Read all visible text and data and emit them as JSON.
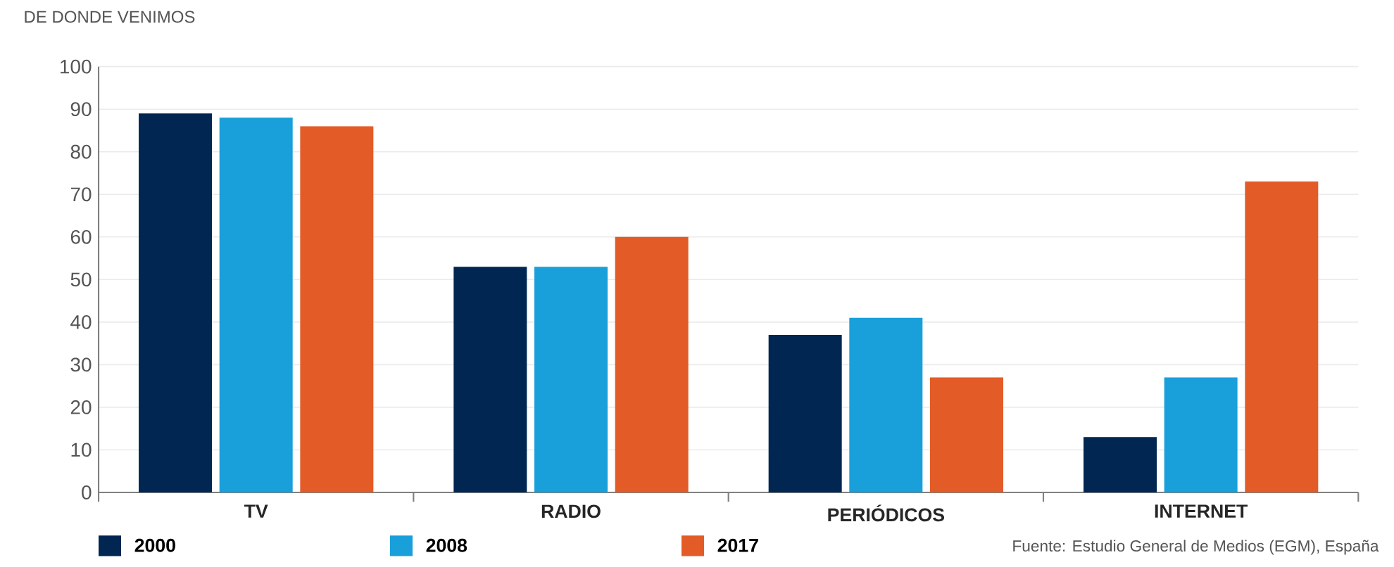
{
  "chart_data": {
    "type": "bar",
    "title": "DE DONDE VENIMOS",
    "categories": [
      "TV",
      "RADIO",
      "PERIÓDICOS",
      "INTERNET"
    ],
    "series": [
      {
        "name": "2000",
        "color": "#012652",
        "values": [
          89,
          53,
          37,
          13
        ]
      },
      {
        "name": "2008",
        "color": "#199fda",
        "values": [
          88,
          53,
          41,
          27
        ]
      },
      {
        "name": "2017",
        "color": "#e35b26",
        "values": [
          86,
          60,
          27,
          73
        ]
      }
    ],
    "ylim": [
      0,
      100
    ],
    "yticks": [
      0,
      10,
      20,
      30,
      40,
      50,
      60,
      70,
      80,
      90,
      100
    ],
    "grid": "y",
    "legend": "bottom",
    "annotations": [
      "Fuente: Estudio General de Medios (EGM), España"
    ]
  }
}
